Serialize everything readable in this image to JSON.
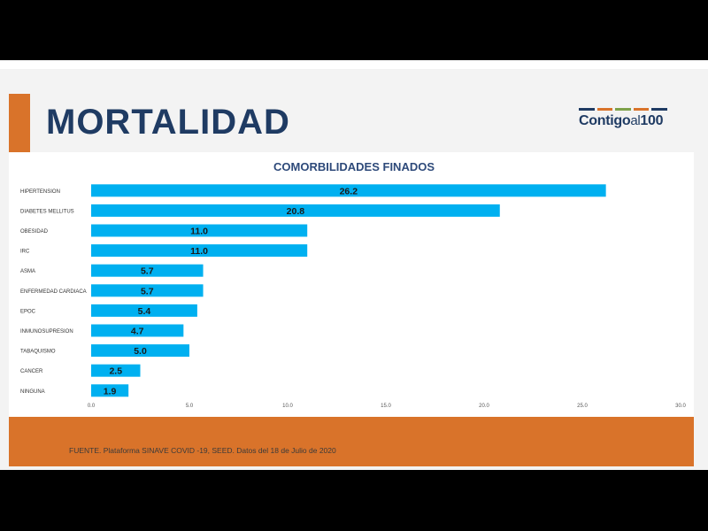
{
  "slide": {
    "title": "MORTALIDAD",
    "logo": {
      "main": "Contigo",
      "mid": "al",
      "number": "100",
      "bar_colors": [
        "#1f3b63",
        "#d9732a",
        "#7ea24a",
        "#d9732a",
        "#1f3b63"
      ]
    },
    "source": "FUENTE. Plataforma SINAVE COVID -19, SEED. Datos del 18 de Julio de 2020"
  },
  "colors": {
    "bar": "#00b0f0",
    "title": "#1f3b63",
    "accent": "#d9732a",
    "chart_title": "#2e4a7a"
  },
  "chart_data": {
    "type": "bar",
    "orientation": "horizontal",
    "title": "COMORBILIDADES FINADOS",
    "categories": [
      "HIPERTENSION",
      "DIABETES MELLITUS",
      "OBESIDAD",
      "IRC",
      "ASMA",
      "ENFERMEDAD CARDIACA",
      "EPOC",
      "INMUNOSUPRESION",
      "TABAQUISMO",
      "CANCER",
      "NINGUNA"
    ],
    "values": [
      26.2,
      20.8,
      11.0,
      11.0,
      5.7,
      5.7,
      5.4,
      4.7,
      5.0,
      2.5,
      1.9
    ],
    "data_labels": [
      "26.2",
      "20.8",
      "11.0",
      "11.0",
      "5.7",
      "5.7",
      "5.4",
      "4.7",
      "5.0",
      "2.5",
      "1.9"
    ],
    "x_ticks": [
      "0.0",
      "5.0",
      "10.0",
      "15.0",
      "20.0",
      "25.0",
      "30.0"
    ],
    "xlim": [
      0,
      30
    ],
    "grid": false,
    "legend": "none"
  }
}
